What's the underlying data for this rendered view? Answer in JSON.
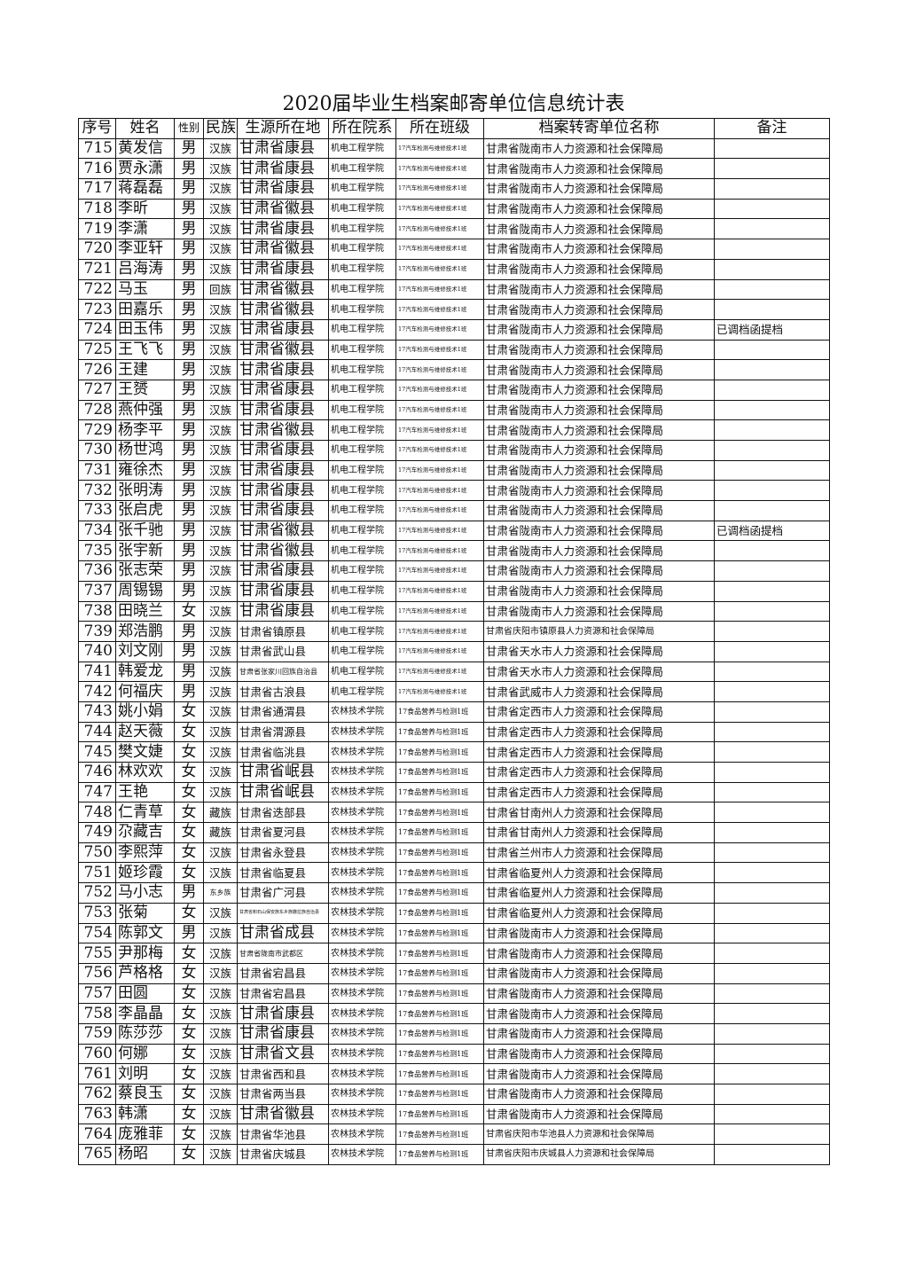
{
  "title": "2020届毕业生档案邮寄单位信息统计表",
  "headers": [
    "序号",
    "姓名",
    "性别",
    "民族",
    "生源所在地",
    "所在院系",
    "所在班级",
    "档案转寄单位名称",
    "备注"
  ],
  "rows": [
    [
      "715",
      "黄发信",
      "男",
      "汉族",
      "甘肃省康县",
      "机电工程学院",
      "17汽车检测与维修技术1班",
      "甘肃省陇南市人力资源和社会保障局",
      ""
    ],
    [
      "716",
      "贾永潇",
      "男",
      "汉族",
      "甘肃省康县",
      "机电工程学院",
      "17汽车检测与维修技术1班",
      "甘肃省陇南市人力资源和社会保障局",
      ""
    ],
    [
      "717",
      "蒋磊磊",
      "男",
      "汉族",
      "甘肃省康县",
      "机电工程学院",
      "17汽车检测与维修技术1班",
      "甘肃省陇南市人力资源和社会保障局",
      ""
    ],
    [
      "718",
      "李昕",
      "男",
      "汉族",
      "甘肃省徽县",
      "机电工程学院",
      "17汽车检测与维修技术1班",
      "甘肃省陇南市人力资源和社会保障局",
      ""
    ],
    [
      "719",
      "李潇",
      "男",
      "汉族",
      "甘肃省康县",
      "机电工程学院",
      "17汽车检测与维修技术1班",
      "甘肃省陇南市人力资源和社会保障局",
      ""
    ],
    [
      "720",
      "李亚轩",
      "男",
      "汉族",
      "甘肃省徽县",
      "机电工程学院",
      "17汽车检测与维修技术1班",
      "甘肃省陇南市人力资源和社会保障局",
      ""
    ],
    [
      "721",
      "吕海涛",
      "男",
      "汉族",
      "甘肃省康县",
      "机电工程学院",
      "17汽车检测与维修技术1班",
      "甘肃省陇南市人力资源和社会保障局",
      ""
    ],
    [
      "722",
      "马玉",
      "男",
      "回族",
      "甘肃省徽县",
      "机电工程学院",
      "17汽车检测与维修技术1班",
      "甘肃省陇南市人力资源和社会保障局",
      ""
    ],
    [
      "723",
      "田嘉乐",
      "男",
      "汉族",
      "甘肃省徽县",
      "机电工程学院",
      "17汽车检测与维修技术1班",
      "甘肃省陇南市人力资源和社会保障局",
      ""
    ],
    [
      "724",
      "田玉伟",
      "男",
      "汉族",
      "甘肃省康县",
      "机电工程学院",
      "17汽车检测与维修技术1班",
      "甘肃省陇南市人力资源和社会保障局",
      "已调档函提档"
    ],
    [
      "725",
      "王飞飞",
      "男",
      "汉族",
      "甘肃省徽县",
      "机电工程学院",
      "17汽车检测与维修技术1班",
      "甘肃省陇南市人力资源和社会保障局",
      ""
    ],
    [
      "726",
      "王建",
      "男",
      "汉族",
      "甘肃省康县",
      "机电工程学院",
      "17汽车检测与维修技术1班",
      "甘肃省陇南市人力资源和社会保障局",
      ""
    ],
    [
      "727",
      "王赟",
      "男",
      "汉族",
      "甘肃省康县",
      "机电工程学院",
      "17汽车检测与维修技术1班",
      "甘肃省陇南市人力资源和社会保障局",
      ""
    ],
    [
      "728",
      "燕仲强",
      "男",
      "汉族",
      "甘肃省康县",
      "机电工程学院",
      "17汽车检测与维修技术1班",
      "甘肃省陇南市人力资源和社会保障局",
      ""
    ],
    [
      "729",
      "杨李平",
      "男",
      "汉族",
      "甘肃省徽县",
      "机电工程学院",
      "17汽车检测与维修技术1班",
      "甘肃省陇南市人力资源和社会保障局",
      ""
    ],
    [
      "730",
      "杨世鸿",
      "男",
      "汉族",
      "甘肃省康县",
      "机电工程学院",
      "17汽车检测与维修技术1班",
      "甘肃省陇南市人力资源和社会保障局",
      ""
    ],
    [
      "731",
      "雍徐杰",
      "男",
      "汉族",
      "甘肃省康县",
      "机电工程学院",
      "17汽车检测与维修技术1班",
      "甘肃省陇南市人力资源和社会保障局",
      ""
    ],
    [
      "732",
      "张明涛",
      "男",
      "汉族",
      "甘肃省康县",
      "机电工程学院",
      "17汽车检测与维修技术1班",
      "甘肃省陇南市人力资源和社会保障局",
      ""
    ],
    [
      "733",
      "张启虎",
      "男",
      "汉族",
      "甘肃省康县",
      "机电工程学院",
      "17汽车检测与维修技术1班",
      "甘肃省陇南市人力资源和社会保障局",
      ""
    ],
    [
      "734",
      "张千驰",
      "男",
      "汉族",
      "甘肃省徽县",
      "机电工程学院",
      "17汽车检测与维修技术1班",
      "甘肃省陇南市人力资源和社会保障局",
      "已调档函提档"
    ],
    [
      "735",
      "张宇新",
      "男",
      "汉族",
      "甘肃省徽县",
      "机电工程学院",
      "17汽车检测与维修技术1班",
      "甘肃省陇南市人力资源和社会保障局",
      ""
    ],
    [
      "736",
      "张志荣",
      "男",
      "汉族",
      "甘肃省康县",
      "机电工程学院",
      "17汽车检测与维修技术1班",
      "甘肃省陇南市人力资源和社会保障局",
      ""
    ],
    [
      "737",
      "周锡锡",
      "男",
      "汉族",
      "甘肃省康县",
      "机电工程学院",
      "17汽车检测与维修技术1班",
      "甘肃省陇南市人力资源和社会保障局",
      ""
    ],
    [
      "738",
      "田晓兰",
      "女",
      "汉族",
      "甘肃省康县",
      "机电工程学院",
      "17汽车检测与维修技术1班",
      "甘肃省陇南市人力资源和社会保障局",
      ""
    ],
    [
      "739",
      "郑浩鹏",
      "男",
      "汉族",
      "甘肃省镇原县",
      "机电工程学院",
      "17汽车检测与维修技术1班",
      "甘肃省庆阳市镇原县人力资源和社会保障局",
      ""
    ],
    [
      "740",
      "刘文刚",
      "男",
      "汉族",
      "甘肃省武山县",
      "机电工程学院",
      "17汽车检测与维修技术1班",
      "甘肃省天水市人力资源和社会保障局",
      ""
    ],
    [
      "741",
      "韩爱龙",
      "男",
      "汉族",
      "甘肃省张家川回族自治县",
      "机电工程学院",
      "17汽车检测与维修技术1班",
      "甘肃省天水市人力资源和社会保障局",
      ""
    ],
    [
      "742",
      "何福庆",
      "男",
      "汉族",
      "甘肃省古浪县",
      "机电工程学院",
      "17汽车检测与维修技术1班",
      "甘肃省武威市人力资源和社会保障局",
      ""
    ],
    [
      "743",
      "姚小娟",
      "女",
      "汉族",
      "甘肃省通渭县",
      "农林技术学院",
      "17食品营养与检测1班",
      "甘肃省定西市人力资源和社会保障局",
      ""
    ],
    [
      "744",
      "赵天薇",
      "女",
      "汉族",
      "甘肃省渭源县",
      "农林技术学院",
      "17食品营养与检测1班",
      "甘肃省定西市人力资源和社会保障局",
      ""
    ],
    [
      "745",
      "樊文婕",
      "女",
      "汉族",
      "甘肃省临洮县",
      "农林技术学院",
      "17食品营养与检测1班",
      "甘肃省定西市人力资源和社会保障局",
      ""
    ],
    [
      "746",
      "林欢欢",
      "女",
      "汉族",
      "甘肃省岷县",
      "农林技术学院",
      "17食品营养与检测1班",
      "甘肃省定西市人力资源和社会保障局",
      ""
    ],
    [
      "747",
      "王艳",
      "女",
      "汉族",
      "甘肃省岷县",
      "农林技术学院",
      "17食品营养与检测1班",
      "甘肃省定西市人力资源和社会保障局",
      ""
    ],
    [
      "748",
      "仁青草",
      "女",
      "藏族",
      "甘肃省迭部县",
      "农林技术学院",
      "17食品营养与检测1班",
      "甘肃省甘南州人力资源和社会保障局",
      ""
    ],
    [
      "749",
      "尕藏吉",
      "女",
      "藏族",
      "甘肃省夏河县",
      "农林技术学院",
      "17食品营养与检测1班",
      "甘肃省甘南州人力资源和社会保障局",
      ""
    ],
    [
      "750",
      "李熙萍",
      "女",
      "汉族",
      "甘肃省永登县",
      "农林技术学院",
      "17食品营养与检测1班",
      "甘肃省兰州市人力资源和社会保障局",
      ""
    ],
    [
      "751",
      "姬珍霞",
      "女",
      "汉族",
      "甘肃省临夏县",
      "农林技术学院",
      "17食品营养与检测1班",
      "甘肃省临夏州人力资源和社会保障局",
      ""
    ],
    [
      "752",
      "马小志",
      "男",
      "东乡族",
      "甘肃省广河县",
      "农林技术学院",
      "17食品营养与检测1班",
      "甘肃省临夏州人力资源和社会保障局",
      ""
    ],
    [
      "753",
      "张菊",
      "女",
      "汉族",
      "甘肃省积石山保安族东乡族撒拉族自治县",
      "农林技术学院",
      "17食品营养与检测1班",
      "甘肃省临夏州人力资源和社会保障局",
      ""
    ],
    [
      "754",
      "陈郭文",
      "男",
      "汉族",
      "甘肃省成县",
      "农林技术学院",
      "17食品营养与检测1班",
      "甘肃省陇南市人力资源和社会保障局",
      ""
    ],
    [
      "755",
      "尹那梅",
      "女",
      "汉族",
      "甘肃省陇南市武都区",
      "农林技术学院",
      "17食品营养与检测1班",
      "甘肃省陇南市人力资源和社会保障局",
      ""
    ],
    [
      "756",
      "芦格格",
      "女",
      "汉族",
      "甘肃省宕昌县",
      "农林技术学院",
      "17食品营养与检测1班",
      "甘肃省陇南市人力资源和社会保障局",
      ""
    ],
    [
      "757",
      "田圆",
      "女",
      "汉族",
      "甘肃省宕昌县",
      "农林技术学院",
      "17食品营养与检测1班",
      "甘肃省陇南市人力资源和社会保障局",
      ""
    ],
    [
      "758",
      "李晶晶",
      "女",
      "汉族",
      "甘肃省康县",
      "农林技术学院",
      "17食品营养与检测1班",
      "甘肃省陇南市人力资源和社会保障局",
      ""
    ],
    [
      "759",
      "陈莎莎",
      "女",
      "汉族",
      "甘肃省康县",
      "农林技术学院",
      "17食品营养与检测1班",
      "甘肃省陇南市人力资源和社会保障局",
      ""
    ],
    [
      "760",
      "何娜",
      "女",
      "汉族",
      "甘肃省文县",
      "农林技术学院",
      "17食品营养与检测1班",
      "甘肃省陇南市人力资源和社会保障局",
      ""
    ],
    [
      "761",
      "刘明",
      "女",
      "汉族",
      "甘肃省西和县",
      "农林技术学院",
      "17食品营养与检测1班",
      "甘肃省陇南市人力资源和社会保障局",
      ""
    ],
    [
      "762",
      "蔡良玉",
      "女",
      "汉族",
      "甘肃省两当县",
      "农林技术学院",
      "17食品营养与检测1班",
      "甘肃省陇南市人力资源和社会保障局",
      ""
    ],
    [
      "763",
      "韩潇",
      "女",
      "汉族",
      "甘肃省徽县",
      "农林技术学院",
      "17食品营养与检测1班",
      "甘肃省陇南市人力资源和社会保障局",
      ""
    ],
    [
      "764",
      "庞雅菲",
      "女",
      "汉族",
      "甘肃省华池县",
      "农林技术学院",
      "17食品营养与检测1班",
      "甘肃省庆阳市华池县人力资源和社会保障局",
      ""
    ],
    [
      "765",
      "杨昭",
      "女",
      "汉族",
      "甘肃省庆城县",
      "农林技术学院",
      "17食品营养与检测1班",
      "甘肃省庆阳市庆城县人力资源和社会保障局",
      ""
    ]
  ]
}
